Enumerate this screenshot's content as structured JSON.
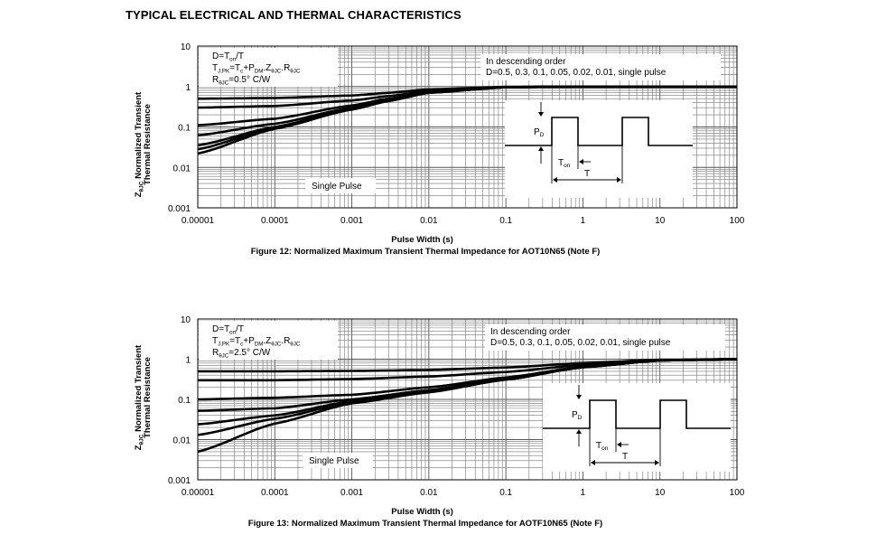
{
  "page": {
    "title": "TYPICAL ELECTRICAL AND THERMAL CHARACTERISTICS"
  },
  "chart_data": [
    {
      "type": "line",
      "title": "Figure 12: Normalized Maximum Transient Thermal Impedance for AOT10N65 (Note F)",
      "xlabel": "Pulse Width (s)",
      "ylabel_line1": "Z",
      "ylabel_sub": "θJC",
      "ylabel_rest": " Normalized Transient",
      "ylabel_line2": "Thermal Resistance",
      "x_scale": "log",
      "y_scale": "log",
      "xlim": [
        1e-05,
        100
      ],
      "ylim": [
        0.001,
        10
      ],
      "x_ticks": [
        "0.00001",
        "0.0001",
        "0.001",
        "0.01",
        "0.1",
        "1",
        "10",
        "100"
      ],
      "y_ticks": [
        "0.001",
        "0.01",
        "0.1",
        "1",
        "10"
      ],
      "grid": true,
      "note_left": [
        "D=Ton/T",
        "TJ,PK=Tc+PDM.ZθJC.RθJC",
        "RθJC=0.5° C/W"
      ],
      "note_right": [
        "In descending order",
        "D=0.5, 0.3, 0.1, 0.05, 0.02, 0.01, single pulse"
      ],
      "single_pulse_label": "Single Pulse",
      "inset_labels": {
        "pd": "PD",
        "ton": "Ton",
        "t": "T"
      },
      "series": [
        {
          "x": [
            1e-05,
            0.0001,
            0.001,
            0.003,
            0.01,
            0.1,
            1,
            100
          ],
          "y": [
            0.5,
            0.52,
            0.6,
            0.7,
            0.85,
            0.98,
            1.0,
            1.0
          ]
        },
        {
          "x": [
            1e-05,
            0.0001,
            0.001,
            0.003,
            0.01,
            0.1,
            1,
            100
          ],
          "y": [
            0.3,
            0.33,
            0.45,
            0.58,
            0.78,
            0.97,
            1.0,
            1.0
          ]
        },
        {
          "x": [
            1e-05,
            0.0001,
            0.001,
            0.003,
            0.01,
            0.1,
            1,
            100
          ],
          "y": [
            0.11,
            0.16,
            0.34,
            0.5,
            0.74,
            0.97,
            1.0,
            1.0
          ]
        },
        {
          "x": [
            1e-05,
            0.0001,
            0.001,
            0.003,
            0.01,
            0.1,
            1,
            100
          ],
          "y": [
            0.062,
            0.12,
            0.3,
            0.47,
            0.72,
            0.96,
            1.0,
            1.0
          ]
        },
        {
          "x": [
            1e-05,
            0.0001,
            0.001,
            0.003,
            0.01,
            0.1,
            1,
            100
          ],
          "y": [
            0.035,
            0.1,
            0.28,
            0.45,
            0.71,
            0.96,
            1.0,
            1.0
          ]
        },
        {
          "x": [
            1e-05,
            0.0001,
            0.001,
            0.003,
            0.01,
            0.1,
            1,
            100
          ],
          "y": [
            0.028,
            0.095,
            0.27,
            0.44,
            0.7,
            0.96,
            1.0,
            1.0
          ]
        },
        {
          "x": [
            1e-05,
            0.0001,
            0.001,
            0.003,
            0.01,
            0.1,
            1,
            100
          ],
          "y": [
            0.022,
            0.09,
            0.27,
            0.44,
            0.7,
            0.96,
            1.0,
            1.0
          ]
        }
      ]
    },
    {
      "type": "line",
      "title": "Figure 13: Normalized Maximum Transient Thermal Impedance for AOTF10N65 (Note F)",
      "xlabel": "Pulse Width (s)",
      "ylabel_line1": "Z",
      "ylabel_sub": "θJC",
      "ylabel_rest": " Normalized Transient",
      "ylabel_line2": "Thermal Resistance",
      "x_scale": "log",
      "y_scale": "log",
      "xlim": [
        1e-05,
        100
      ],
      "ylim": [
        0.001,
        10
      ],
      "x_ticks": [
        "0.00001",
        "0.0001",
        "0.001",
        "0.01",
        "0.1",
        "1",
        "10",
        "100"
      ],
      "y_ticks": [
        "0.001",
        "0.01",
        "0.1",
        "1",
        "10"
      ],
      "grid": true,
      "note_left": [
        "D=Ton/T",
        "TJ,PK=Tc+PDM.ZθJC.RθJC",
        "RθJC=2.5° C/W"
      ],
      "note_right": [
        "In descending order",
        "D=0.5, 0.3, 0.1, 0.05, 0.02, 0.01, single pulse"
      ],
      "single_pulse_label": "Single Pulse",
      "inset_labels": {
        "pd": "PD",
        "ton": "Ton",
        "t": "T"
      },
      "series": [
        {
          "x": [
            1e-05,
            0.0001,
            0.001,
            0.01,
            0.1,
            1,
            10,
            100
          ],
          "y": [
            0.5,
            0.5,
            0.51,
            0.54,
            0.62,
            0.8,
            0.97,
            1.0
          ]
        },
        {
          "x": [
            1e-05,
            0.0001,
            0.001,
            0.01,
            0.1,
            1,
            10,
            100
          ],
          "y": [
            0.3,
            0.3,
            0.32,
            0.37,
            0.48,
            0.72,
            0.95,
            1.0
          ]
        },
        {
          "x": [
            1e-05,
            0.0001,
            0.001,
            0.01,
            0.1,
            1,
            10,
            100
          ],
          "y": [
            0.1,
            0.11,
            0.13,
            0.2,
            0.35,
            0.65,
            0.93,
            1.0
          ]
        },
        {
          "x": [
            1e-05,
            0.0001,
            0.001,
            0.01,
            0.1,
            1,
            10,
            100
          ],
          "y": [
            0.052,
            0.06,
            0.1,
            0.17,
            0.33,
            0.64,
            0.93,
            1.0
          ]
        },
        {
          "x": [
            1e-05,
            0.0001,
            0.001,
            0.01,
            0.1,
            1,
            10,
            100
          ],
          "y": [
            0.024,
            0.04,
            0.09,
            0.16,
            0.32,
            0.63,
            0.93,
            1.0
          ]
        },
        {
          "x": [
            1e-05,
            0.0001,
            0.001,
            0.01,
            0.1,
            1,
            10,
            100
          ],
          "y": [
            0.013,
            0.033,
            0.085,
            0.155,
            0.31,
            0.63,
            0.93,
            1.0
          ]
        },
        {
          "x": [
            1e-05,
            0.0001,
            0.001,
            0.01,
            0.1,
            1,
            10,
            100
          ],
          "y": [
            0.005,
            0.025,
            0.08,
            0.15,
            0.31,
            0.63,
            0.93,
            1.0
          ]
        }
      ]
    }
  ]
}
